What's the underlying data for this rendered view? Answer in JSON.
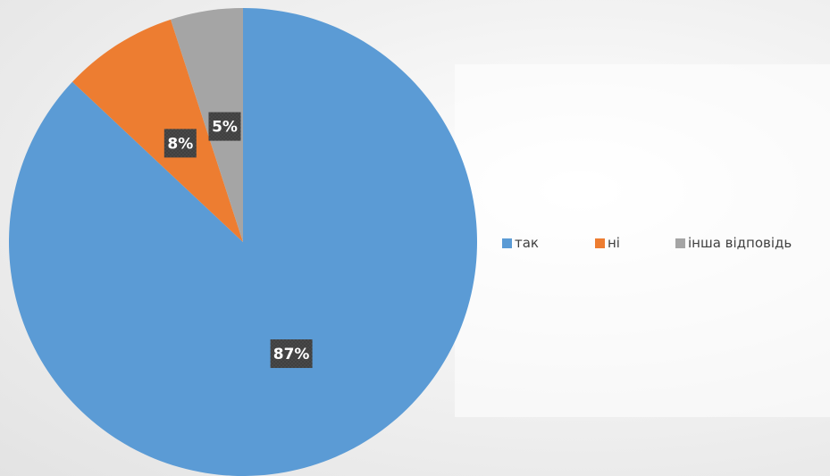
{
  "chart_data": {
    "type": "pie",
    "title": "",
    "categories": [
      "так",
      "ні",
      "інша відповідь"
    ],
    "values": [
      87,
      8,
      5
    ],
    "data_labels": [
      "87%",
      "8%",
      "5%"
    ],
    "colors": [
      "#5b9bd5",
      "#ed7d31",
      "#a5a5a5"
    ],
    "legend_position": "right",
    "label_style": "dark-box"
  }
}
